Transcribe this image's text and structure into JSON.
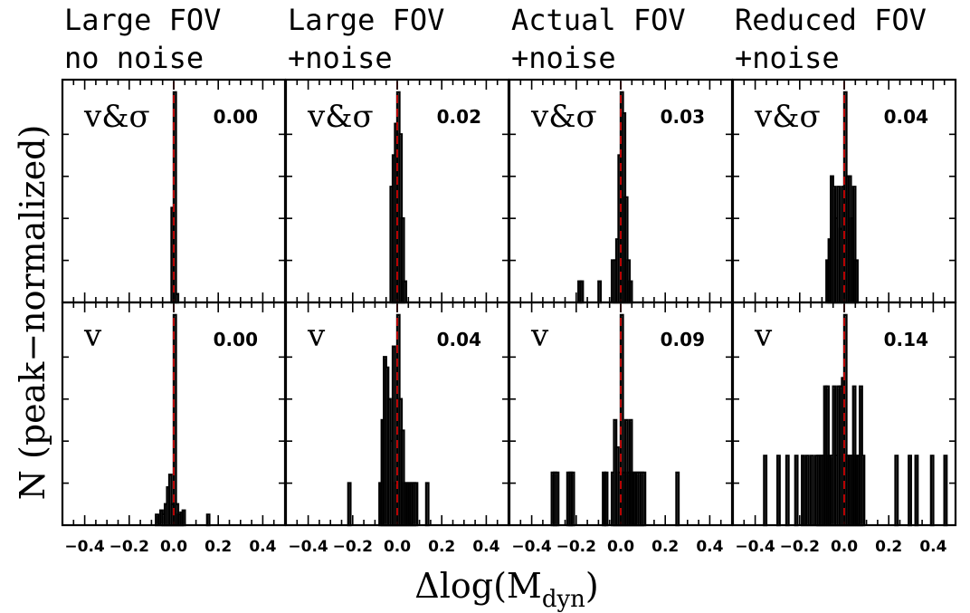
{
  "chart_data": {
    "type": "bar",
    "column_titles": [
      [
        "Large FOV",
        "no noise"
      ],
      [
        "Large FOV",
        "+noise"
      ],
      [
        "Actual FOV",
        "+noise"
      ],
      [
        "Reduced FOV",
        "+noise"
      ]
    ],
    "row_labels": [
      "v&σ",
      "v"
    ],
    "xlabel": "Δlog(M_dyn)",
    "xlabel_main": "Δlog(M",
    "xlabel_sub": "dyn",
    "xlabel_close": ")",
    "ylabel": "N (peak−normalized)",
    "xlim": [
      -0.5,
      0.5
    ],
    "ylim": [
      0,
      1.06
    ],
    "xticks": [
      -0.4,
      -0.2,
      0.0,
      0.2,
      0.4
    ],
    "xtick_labels": [
      "−0.4",
      "−0.2",
      "0.0",
      "0.2",
      "0.4"
    ],
    "reference_line": {
      "x": 0.0,
      "color": "#cc0000",
      "style": "dashed"
    },
    "panels": [
      {
        "label": "v&σ",
        "stat": "0.00",
        "bins": [
          {
            "x": -0.005,
            "h": 0.45
          },
          {
            "x": 0.005,
            "h": 1.0
          },
          {
            "x": 0.015,
            "h": 0.04
          }
        ]
      },
      {
        "label": "v&σ",
        "stat": "0.02",
        "bins": [
          {
            "x": -0.025,
            "h": 0.55
          },
          {
            "x": -0.015,
            "h": 0.7
          },
          {
            "x": -0.005,
            "h": 0.85
          },
          {
            "x": 0.005,
            "h": 1.0
          },
          {
            "x": 0.015,
            "h": 0.8
          },
          {
            "x": 0.025,
            "h": 0.4
          },
          {
            "x": 0.035,
            "h": 0.1
          }
        ]
      },
      {
        "label": "v&σ",
        "stat": "0.03",
        "bins": [
          {
            "x": -0.185,
            "h": 0.1
          },
          {
            "x": -0.175,
            "h": 0.1
          },
          {
            "x": -0.095,
            "h": 0.1
          },
          {
            "x": -0.035,
            "h": 0.2
          },
          {
            "x": -0.025,
            "h": 0.2
          },
          {
            "x": -0.015,
            "h": 0.3
          },
          {
            "x": -0.005,
            "h": 0.7
          },
          {
            "x": 0.005,
            "h": 1.0
          },
          {
            "x": 0.015,
            "h": 0.9
          },
          {
            "x": 0.025,
            "h": 0.5
          },
          {
            "x": 0.035,
            "h": 0.2
          },
          {
            "x": 0.045,
            "h": 0.1
          }
        ]
      },
      {
        "label": "v&σ",
        "stat": "0.04",
        "bins": [
          {
            "x": -0.075,
            "h": 0.2
          },
          {
            "x": -0.065,
            "h": 0.3
          },
          {
            "x": -0.055,
            "h": 0.6
          },
          {
            "x": -0.045,
            "h": 0.55
          },
          {
            "x": -0.035,
            "h": 0.4
          },
          {
            "x": -0.025,
            "h": 0.55
          },
          {
            "x": -0.015,
            "h": 0.35
          },
          {
            "x": -0.005,
            "h": 0.55
          },
          {
            "x": 0.005,
            "h": 1.0
          },
          {
            "x": 0.015,
            "h": 0.6
          },
          {
            "x": 0.025,
            "h": 0.6
          },
          {
            "x": 0.035,
            "h": 0.4
          },
          {
            "x": 0.045,
            "h": 0.55
          },
          {
            "x": 0.055,
            "h": 0.2
          }
        ]
      },
      {
        "label": "v",
        "stat": "0.00",
        "bins": [
          {
            "x": -0.075,
            "h": 0.05
          },
          {
            "x": -0.055,
            "h": 0.07
          },
          {
            "x": -0.045,
            "h": 0.05
          },
          {
            "x": -0.035,
            "h": 0.1
          },
          {
            "x": -0.025,
            "h": 0.18
          },
          {
            "x": -0.015,
            "h": 0.24
          },
          {
            "x": -0.005,
            "h": 0.1
          },
          {
            "x": 0.005,
            "h": 1.0
          },
          {
            "x": 0.015,
            "h": 0.1
          },
          {
            "x": 0.025,
            "h": 0.05
          },
          {
            "x": 0.035,
            "h": 0.06
          },
          {
            "x": 0.045,
            "h": 0.07
          },
          {
            "x": 0.155,
            "h": 0.05
          }
        ]
      },
      {
        "label": "v",
        "stat": "0.04",
        "bins": [
          {
            "x": -0.215,
            "h": 0.2
          },
          {
            "x": -0.075,
            "h": 0.2
          },
          {
            "x": -0.065,
            "h": 0.5
          },
          {
            "x": -0.055,
            "h": 0.8
          },
          {
            "x": -0.045,
            "h": 0.75
          },
          {
            "x": -0.035,
            "h": 0.6
          },
          {
            "x": -0.025,
            "h": 0.4
          },
          {
            "x": -0.015,
            "h": 0.85
          },
          {
            "x": -0.005,
            "h": 0.2
          },
          {
            "x": 0.005,
            "h": 1.0
          },
          {
            "x": 0.015,
            "h": 0.6
          },
          {
            "x": 0.025,
            "h": 0.45
          },
          {
            "x": 0.035,
            "h": 0.2
          },
          {
            "x": 0.045,
            "h": 0.2
          },
          {
            "x": 0.055,
            "h": 0.2
          },
          {
            "x": 0.065,
            "h": 0.2
          },
          {
            "x": 0.075,
            "h": 0.2
          },
          {
            "x": 0.085,
            "h": 0.2
          },
          {
            "x": 0.135,
            "h": 0.2
          }
        ]
      },
      {
        "label": "v",
        "stat": "0.09",
        "bins": [
          {
            "x": -0.305,
            "h": 0.25
          },
          {
            "x": -0.295,
            "h": 0.25
          },
          {
            "x": -0.285,
            "h": 0.25
          },
          {
            "x": -0.235,
            "h": 0.25
          },
          {
            "x": -0.225,
            "h": 0.25
          },
          {
            "x": -0.215,
            "h": 0.25
          },
          {
            "x": -0.075,
            "h": 0.25
          },
          {
            "x": -0.065,
            "h": 0.25
          },
          {
            "x": -0.035,
            "h": 0.25
          },
          {
            "x": -0.025,
            "h": 0.5
          },
          {
            "x": -0.015,
            "h": 0.37
          },
          {
            "x": -0.005,
            "h": 0.25
          },
          {
            "x": 0.005,
            "h": 1.0
          },
          {
            "x": 0.015,
            "h": 0.25
          },
          {
            "x": 0.025,
            "h": 0.5
          },
          {
            "x": 0.035,
            "h": 0.25
          },
          {
            "x": 0.045,
            "h": 0.5
          },
          {
            "x": 0.055,
            "h": 0.25
          },
          {
            "x": 0.065,
            "h": 0.25
          },
          {
            "x": 0.075,
            "h": 0.25
          },
          {
            "x": 0.085,
            "h": 0.25
          },
          {
            "x": 0.095,
            "h": 0.25
          },
          {
            "x": 0.105,
            "h": 0.25
          },
          {
            "x": 0.255,
            "h": 0.25
          }
        ]
      },
      {
        "label": "v",
        "stat": "0.14",
        "bins": [
          {
            "x": -0.355,
            "h": 0.33
          },
          {
            "x": -0.295,
            "h": 0.33
          },
          {
            "x": -0.255,
            "h": 0.33
          },
          {
            "x": -0.215,
            "h": 0.33
          },
          {
            "x": -0.185,
            "h": 0.33
          },
          {
            "x": -0.165,
            "h": 0.33
          },
          {
            "x": -0.145,
            "h": 0.33
          },
          {
            "x": -0.125,
            "h": 0.33
          },
          {
            "x": -0.115,
            "h": 0.33
          },
          {
            "x": -0.105,
            "h": 0.33
          },
          {
            "x": -0.095,
            "h": 0.33
          },
          {
            "x": -0.085,
            "h": 0.66
          },
          {
            "x": -0.075,
            "h": 0.66
          },
          {
            "x": -0.065,
            "h": 0.33
          },
          {
            "x": -0.055,
            "h": 0.33
          },
          {
            "x": -0.045,
            "h": 0.66
          },
          {
            "x": -0.035,
            "h": 0.33
          },
          {
            "x": -0.025,
            "h": 0.66
          },
          {
            "x": -0.015,
            "h": 0.66
          },
          {
            "x": -0.005,
            "h": 0.7
          },
          {
            "x": 0.005,
            "h": 1.0
          },
          {
            "x": 0.015,
            "h": 0.33
          },
          {
            "x": 0.025,
            "h": 0.33
          },
          {
            "x": 0.035,
            "h": 0.33
          },
          {
            "x": 0.045,
            "h": 0.66
          },
          {
            "x": 0.055,
            "h": 0.33
          },
          {
            "x": 0.065,
            "h": 0.33
          },
          {
            "x": 0.075,
            "h": 0.66
          },
          {
            "x": 0.085,
            "h": 0.33
          },
          {
            "x": 0.235,
            "h": 0.33
          },
          {
            "x": 0.295,
            "h": 0.33
          },
          {
            "x": 0.325,
            "h": 0.33
          },
          {
            "x": 0.395,
            "h": 0.33
          },
          {
            "x": 0.455,
            "h": 0.33
          }
        ]
      }
    ]
  }
}
